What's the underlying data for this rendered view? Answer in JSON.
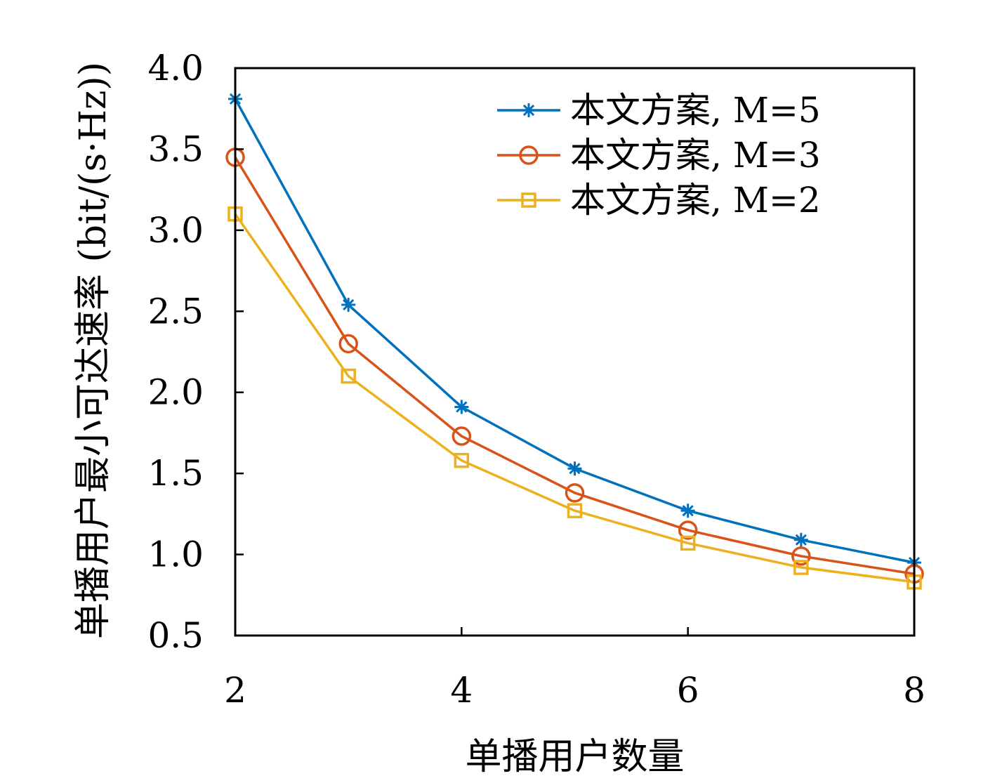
{
  "chart_data": {
    "type": "line",
    "xlabel": "单播用户数量",
    "ylabel": "单播用户最小可达速率 (bit/(s·Hz))",
    "xlim": [
      2,
      8
    ],
    "ylim": [
      0.5,
      4.0
    ],
    "x_ticks": [
      2,
      4,
      6,
      8
    ],
    "x_tick_labels": [
      "2",
      "4",
      "6",
      "8"
    ],
    "y_ticks": [
      0.5,
      1.0,
      1.5,
      2.0,
      2.5,
      3.0,
      3.5,
      4.0
    ],
    "y_tick_labels": [
      "0.5",
      "1.0",
      "1.5",
      "2.0",
      "2.5",
      "3.0",
      "3.5",
      "4.0"
    ],
    "grid": false,
    "legend_position": "top-right",
    "x": [
      2,
      3,
      4,
      5,
      6,
      7,
      8
    ],
    "series": [
      {
        "name": "本文方案, M=5",
        "marker": "asterisk",
        "color": "#0072BD",
        "values": [
          3.81,
          2.54,
          1.91,
          1.53,
          1.27,
          1.09,
          0.95
        ]
      },
      {
        "name": "本文方案, M=3",
        "marker": "circle",
        "color": "#D95319",
        "values": [
          3.45,
          2.3,
          1.73,
          1.38,
          1.15,
          0.99,
          0.88
        ]
      },
      {
        "name": "本文方案, M=2",
        "marker": "square",
        "color": "#EDB120",
        "values": [
          3.1,
          2.1,
          1.58,
          1.27,
          1.07,
          0.92,
          0.83
        ]
      }
    ]
  }
}
